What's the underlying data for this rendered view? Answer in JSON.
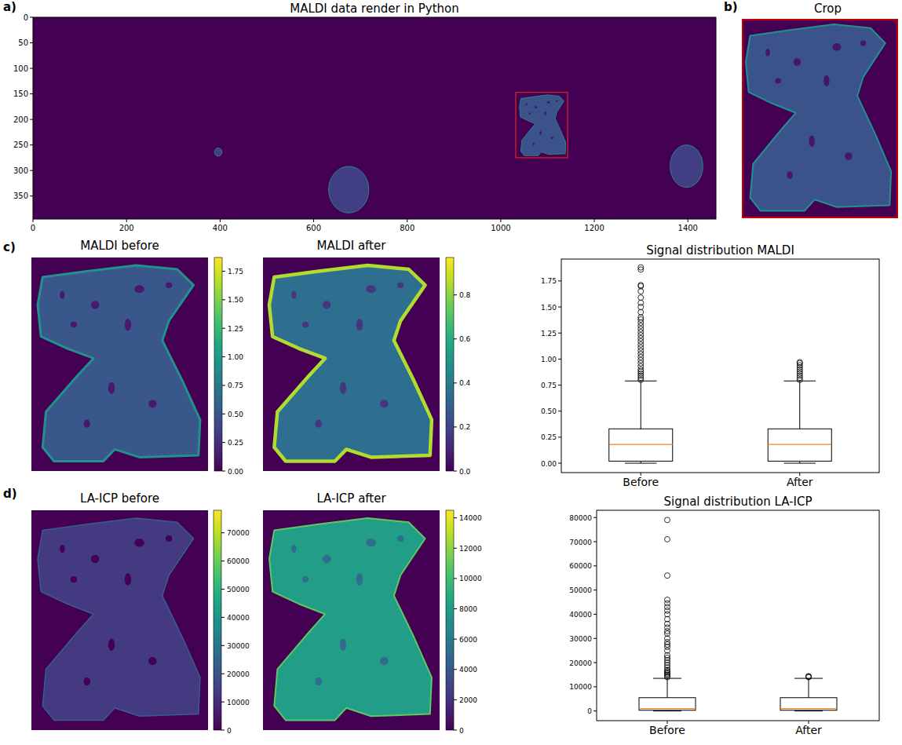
{
  "chart_data": [
    {
      "type": "image",
      "label": "a)",
      "title": "MALDI data render in Python",
      "xlim": [
        0,
        1460
      ],
      "ylim": [
        395,
        0
      ],
      "xticks": [
        0,
        200,
        400,
        600,
        800,
        1000,
        1200,
        1400
      ],
      "yticks": [
        0,
        50,
        100,
        150,
        200,
        250,
        300,
        350
      ],
      "sections": [
        {
          "x": [
            388,
            404
          ],
          "y": [
            256,
            272
          ]
        },
        {
          "x": [
            632,
            718
          ],
          "y": [
            292,
            383
          ]
        },
        {
          "x": [
            1040,
            1140
          ],
          "y": [
            152,
            272
          ]
        },
        {
          "x": [
            1362,
            1432
          ],
          "y": [
            250,
            333
          ]
        }
      ],
      "crop": {
        "x": [
          1032,
          1143
        ],
        "y": [
          147,
          275
        ]
      }
    },
    {
      "type": "image",
      "label": "b)",
      "title": "Crop"
    },
    {
      "type": "heatmap",
      "label": "c)",
      "title": "MALDI before",
      "color_range": [
        0,
        1.87
      ],
      "color_ticks": [
        {
          "value": 0,
          "label": "0.00"
        },
        {
          "value": 0.25,
          "label": "0.25"
        },
        {
          "value": 0.5,
          "label": "0.50"
        },
        {
          "value": 0.75,
          "label": "0.75"
        },
        {
          "value": 1,
          "label": "1.00"
        },
        {
          "value": 1.25,
          "label": "1.25"
        },
        {
          "value": 1.5,
          "label": "1.50"
        },
        {
          "value": 1.75,
          "label": "1.75"
        }
      ]
    },
    {
      "type": "heatmap",
      "title": "MALDI after",
      "color_range": [
        0,
        0.97
      ],
      "color_ticks": [
        {
          "value": 0,
          "label": "0.0"
        },
        0.2,
        0.4,
        0.6,
        0.8
      ]
    },
    {
      "type": "box",
      "title": "Signal distribution MALDI",
      "categories": [
        "Before",
        "After"
      ],
      "ylim": [
        -0.09,
        1.96
      ],
      "yticks": [
        {
          "value": 0,
          "label": "0.00"
        },
        {
          "value": 0.25,
          "label": "0.25"
        },
        {
          "value": 0.5,
          "label": "0.50"
        },
        {
          "value": 0.75,
          "label": "0.75"
        },
        {
          "value": 1,
          "label": "1.00"
        },
        {
          "value": 1.25,
          "label": "1.25"
        },
        {
          "value": 1.5,
          "label": "1.50"
        },
        {
          "value": 1.75,
          "label": "1.75"
        }
      ],
      "boxes": [
        {
          "whislo": 0,
          "q1": 0.02,
          "median": 0.18,
          "q3": 0.33,
          "whishi": 0.79,
          "outliers": [
            0.8,
            0.82,
            0.84,
            0.86,
            0.88,
            0.9,
            0.93,
            0.96,
            0.99,
            1.02,
            1.05,
            1.08,
            1.11,
            1.14,
            1.17,
            1.2,
            1.23,
            1.26,
            1.29,
            1.32,
            1.35,
            1.38,
            1.4,
            1.45,
            1.5,
            1.54,
            1.59,
            1.65,
            1.7,
            1.71,
            1.86,
            1.88
          ]
        },
        {
          "whislo": 0,
          "q1": 0.02,
          "median": 0.18,
          "q3": 0.33,
          "whishi": 0.79,
          "outliers": [
            0.8,
            0.82,
            0.84,
            0.86,
            0.88,
            0.9,
            0.92,
            0.94,
            0.96,
            0.97
          ]
        }
      ]
    },
    {
      "type": "heatmap",
      "label": "d)",
      "title": "LA-ICP before",
      "color_range": [
        0,
        78000
      ],
      "color_ticks": [
        0,
        10000,
        20000,
        30000,
        40000,
        50000,
        60000,
        70000
      ]
    },
    {
      "type": "heatmap",
      "title": "LA-ICP after",
      "color_range": [
        0,
        14500
      ],
      "color_ticks": [
        0,
        2000,
        4000,
        6000,
        8000,
        10000,
        12000,
        14000
      ]
    },
    {
      "type": "box",
      "title": "Signal distribution LA-ICP",
      "categories": [
        "Before",
        "After"
      ],
      "ylim": [
        -4000,
        83000
      ],
      "yticks": [
        0,
        10000,
        20000,
        30000,
        40000,
        50000,
        60000,
        70000,
        80000
      ],
      "boxes": [
        {
          "whislo": 0,
          "q1": 300,
          "median": 1000,
          "q3": 5500,
          "whishi": 13500,
          "outliers": [
            14000,
            14500,
            15000,
            15500,
            16000,
            16500,
            17000,
            18000,
            19000,
            20000,
            21000,
            22000,
            23000,
            25000,
            26500,
            27500,
            28500,
            30000,
            32000,
            33000,
            34500,
            36000,
            38000,
            40000,
            41500,
            43000,
            44500,
            46000,
            56000,
            71000,
            79000
          ]
        },
        {
          "whislo": 0,
          "q1": 300,
          "median": 1000,
          "q3": 5500,
          "whishi": 13500,
          "outliers": [
            14000,
            14200,
            14400
          ]
        }
      ]
    }
  ]
}
